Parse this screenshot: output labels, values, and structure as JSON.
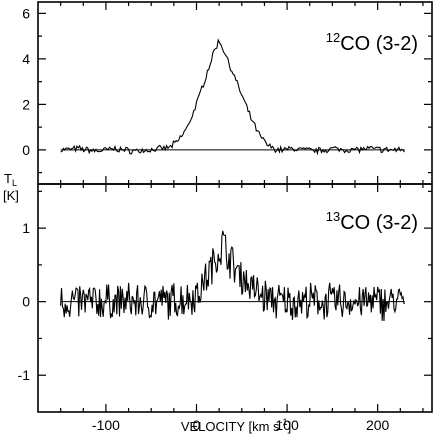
{
  "chart_data": [
    {
      "type": "line",
      "panel": "top",
      "label": {
        "isotope": "12",
        "molecule": "CO (3-2)"
      },
      "xlim": [
        -175,
        260
      ],
      "ylim": [
        -1.5,
        6.5
      ],
      "x_ticks": [
        -100,
        0,
        100,
        200
      ],
      "y_ticks": [
        0,
        2,
        4,
        6
      ],
      "baseline": 0,
      "series": [
        {
          "x": [
            -150,
            -130,
            -110,
            -90,
            -70,
            -50,
            -30,
            -20,
            -10,
            0,
            10,
            20,
            25,
            30,
            35,
            40,
            50,
            60,
            70,
            80,
            90,
            110,
            130,
            150,
            170,
            190,
            210,
            230
          ],
          "y": [
            0,
            0.05,
            -0.05,
            0.05,
            -0.05,
            0,
            0.1,
            0.4,
            1.0,
            2.0,
            3.2,
            4.4,
            4.8,
            4.4,
            3.9,
            3.4,
            2.4,
            1.4,
            0.6,
            0.15,
            0,
            0.05,
            -0.05,
            0.05,
            0,
            0.05,
            0,
            0
          ]
        }
      ]
    },
    {
      "type": "line",
      "panel": "bottom",
      "label": {
        "isotope": "13",
        "molecule": "CO (3-2)"
      },
      "xlim": [
        -175,
        260
      ],
      "ylim": [
        -1.5,
        1.6
      ],
      "x_ticks": [
        -100,
        0,
        100,
        200
      ],
      "y_ticks": [
        -1,
        0,
        1
      ],
      "baseline": 0,
      "series": [
        {
          "x": [
            -150,
            -130,
            -110,
            -90,
            -70,
            -50,
            -30,
            -10,
            0,
            10,
            20,
            25,
            30,
            35,
            40,
            50,
            60,
            70,
            90,
            110,
            130,
            150,
            170,
            190,
            210,
            230
          ],
          "y": [
            0,
            0,
            0,
            0,
            0,
            0,
            0,
            0.05,
            0.1,
            0.3,
            0.55,
            0.7,
            0.8,
            0.65,
            0.5,
            0.35,
            0.2,
            0.1,
            0,
            0,
            0,
            0,
            0,
            0,
            0,
            0
          ]
        }
      ]
    }
  ],
  "shared_axes": {
    "xlabel": "VELOCITY  [km s",
    "xlabel_sup": "-1",
    "xlabel_end": "]",
    "ylabel_line1": "T",
    "ylabel_sub": "L",
    "ylabel_line2": "[K]"
  }
}
